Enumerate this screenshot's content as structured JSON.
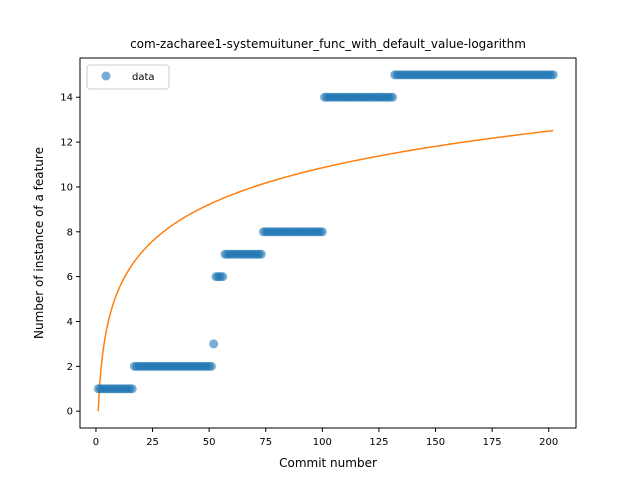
{
  "chart_data": {
    "type": "scatter",
    "title": "com-zacharee1-systemuituner_func_with_default_value-logarithm",
    "xlabel": "Commit number",
    "ylabel": "Number of instance of a feature",
    "xlim": [
      -7.05,
      212.05
    ],
    "ylim": [
      -0.75,
      15.75
    ],
    "xticks": [
      0,
      25,
      50,
      75,
      100,
      125,
      150,
      175,
      200
    ],
    "yticks": [
      0,
      2,
      4,
      6,
      8,
      10,
      12,
      14
    ],
    "grid": false,
    "legend": {
      "placement": "top-left",
      "entries": [
        "data"
      ]
    },
    "colors": {
      "data": "#1f77b4",
      "fit": "#ff7f0e"
    },
    "series": [
      {
        "name": "data",
        "kind": "scatter",
        "segments": [
          {
            "x_start": 1,
            "x_end": 16,
            "y": 1
          },
          {
            "x_start": 17,
            "x_end": 51,
            "y": 2
          },
          {
            "x_start": 52,
            "x_end": 52,
            "y": 3
          },
          {
            "x_start": 53,
            "x_end": 56,
            "y": 6
          },
          {
            "x_start": 57,
            "x_end": 73,
            "y": 7
          },
          {
            "x_start": 74,
            "x_end": 100,
            "y": 8
          },
          {
            "x_start": 101,
            "x_end": 131,
            "y": 14
          },
          {
            "x_start": 132,
            "x_end": 202,
            "y": 15
          }
        ]
      },
      {
        "name": "",
        "kind": "line",
        "function": "logarithm",
        "a": 2.357,
        "b": 0,
        "x_range": [
          1,
          202
        ]
      }
    ]
  }
}
